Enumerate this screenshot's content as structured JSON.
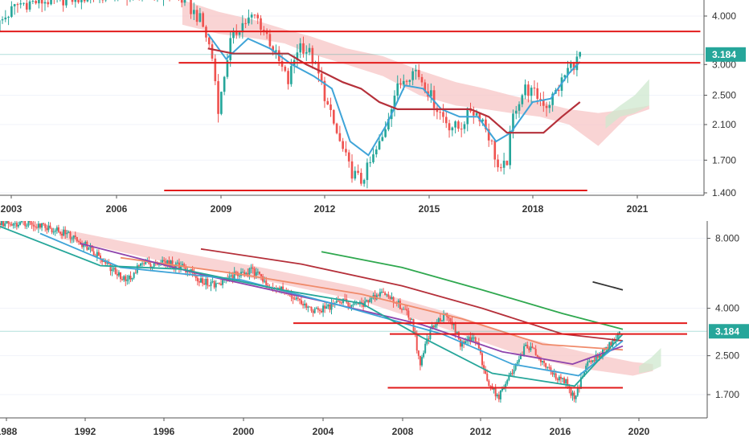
{
  "colors": {
    "up": "#26a69a",
    "down": "#ef5350",
    "support": "#e21b1b",
    "tenkan": "#3fa4d8",
    "kijun": "#b5303a",
    "cloud_bear": "#f7c6c6",
    "cloud_bull": "#cfe8cf",
    "ma_green": "#2fa84f",
    "ma_dark": "#333333",
    "price_badge": "#26a69a",
    "axis": "#555555",
    "grid": "#f0f3fa"
  },
  "chart_data": [
    {
      "type": "candlestick",
      "title": "",
      "timeframe": "monthly",
      "y_scale": "log",
      "x_ticks": [
        "2003",
        "2006",
        "2009",
        "2012",
        "2015",
        "2018",
        "2021"
      ],
      "x_range": [
        2003.0,
        2022.3
      ],
      "y_ticks": [
        "4.000",
        "3.000",
        "2.500",
        "2.100",
        "1.700",
        "1.400"
      ],
      "y_range": [
        1.38,
        4.4
      ],
      "last_price": "3.184",
      "support_lines": [
        {
          "from": 2002.9,
          "to": 2022.2,
          "y": 3.65
        },
        {
          "from": 2007.9,
          "to": 2022.2,
          "y": 3.03
        },
        {
          "from": 2007.5,
          "to": 2019.1,
          "y": 1.42
        }
      ],
      "price_path": [
        [
          2002.9,
          3.75
        ],
        [
          2003.5,
          4.3
        ],
        [
          2004.5,
          4.4
        ],
        [
          2005.5,
          4.5
        ],
        [
          2006.5,
          4.6
        ],
        [
          2007.5,
          4.6
        ],
        [
          2008.0,
          4.4
        ],
        [
          2008.5,
          3.9
        ],
        [
          2008.8,
          3.2
        ],
        [
          2009.0,
          2.25
        ],
        [
          2009.3,
          3.4
        ],
        [
          2009.6,
          3.8
        ],
        [
          2010.0,
          4.0
        ],
        [
          2010.3,
          3.6
        ],
        [
          2010.6,
          3.1
        ],
        [
          2010.9,
          2.7
        ],
        [
          2011.2,
          3.4
        ],
        [
          2011.5,
          3.2
        ],
        [
          2011.8,
          2.7
        ],
        [
          2012.0,
          2.3
        ],
        [
          2012.3,
          1.9
        ],
        [
          2012.6,
          1.6
        ],
        [
          2012.9,
          1.5
        ],
        [
          2013.2,
          1.7
        ],
        [
          2013.5,
          1.95
        ],
        [
          2013.8,
          2.5
        ],
        [
          2014.1,
          2.8
        ],
        [
          2014.4,
          2.9
        ],
        [
          2014.7,
          2.6
        ],
        [
          2015.0,
          2.3
        ],
        [
          2015.3,
          2.1
        ],
        [
          2015.6,
          2.05
        ],
        [
          2015.9,
          2.3
        ],
        [
          2016.2,
          2.2
        ],
        [
          2016.5,
          1.85
        ],
        [
          2016.7,
          1.55
        ],
        [
          2016.9,
          1.7
        ],
        [
          2017.1,
          2.3
        ],
        [
          2017.4,
          2.6
        ],
        [
          2017.7,
          2.5
        ],
        [
          2018.0,
          2.35
        ],
        [
          2018.3,
          2.6
        ],
        [
          2018.6,
          2.95
        ],
        [
          2018.8,
          3.05
        ],
        [
          2018.9,
          3.2
        ]
      ],
      "tenkan_path": [
        [
          2008.7,
          3.6
        ],
        [
          2009.2,
          3.1
        ],
        [
          2009.8,
          3.5
        ],
        [
          2010.4,
          3.3
        ],
        [
          2011.0,
          3.0
        ],
        [
          2011.6,
          2.8
        ],
        [
          2012.1,
          2.6
        ],
        [
          2012.6,
          1.9
        ],
        [
          2013.1,
          1.75
        ],
        [
          2013.6,
          2.1
        ],
        [
          2014.1,
          2.65
        ],
        [
          2014.6,
          2.6
        ],
        [
          2015.1,
          2.3
        ],
        [
          2015.6,
          2.2
        ],
        [
          2016.1,
          2.2
        ],
        [
          2016.6,
          1.9
        ],
        [
          2017.0,
          2.0
        ],
        [
          2017.6,
          2.4
        ],
        [
          2018.1,
          2.45
        ],
        [
          2018.6,
          2.85
        ],
        [
          2018.9,
          3.05
        ]
      ],
      "kijun_path": [
        [
          2008.7,
          3.3
        ],
        [
          2009.4,
          3.2
        ],
        [
          2010.2,
          3.2
        ],
        [
          2010.9,
          3.2
        ],
        [
          2011.4,
          3.0
        ],
        [
          2011.9,
          2.85
        ],
        [
          2012.4,
          2.7
        ],
        [
          2012.9,
          2.6
        ],
        [
          2013.4,
          2.4
        ],
        [
          2013.9,
          2.3
        ],
        [
          2014.4,
          2.3
        ],
        [
          2014.9,
          2.3
        ],
        [
          2015.4,
          2.3
        ],
        [
          2015.9,
          2.3
        ],
        [
          2016.4,
          2.2
        ],
        [
          2016.9,
          2.0
        ],
        [
          2017.4,
          2.0
        ],
        [
          2017.9,
          2.0
        ],
        [
          2018.4,
          2.2
        ],
        [
          2018.9,
          2.4
        ]
      ],
      "cloud_bear_upper": [
        [
          2008.0,
          4.4
        ],
        [
          2009.0,
          4.1
        ],
        [
          2010.0,
          3.9
        ],
        [
          2010.8,
          3.7
        ],
        [
          2011.5,
          3.55
        ],
        [
          2012.5,
          3.3
        ],
        [
          2013.5,
          3.15
        ],
        [
          2014.5,
          2.9
        ],
        [
          2015.5,
          2.7
        ],
        [
          2016.3,
          2.6
        ],
        [
          2017.0,
          2.5
        ],
        [
          2017.8,
          2.4
        ],
        [
          2018.6,
          2.3
        ],
        [
          2019.4,
          2.25
        ],
        [
          2020.2,
          2.3
        ],
        [
          2020.8,
          2.35
        ]
      ],
      "cloud_bear_lower": [
        [
          2008.0,
          3.8
        ],
        [
          2009.0,
          3.6
        ],
        [
          2010.0,
          3.5
        ],
        [
          2010.8,
          3.4
        ],
        [
          2011.5,
          3.2
        ],
        [
          2012.5,
          3.0
        ],
        [
          2013.5,
          2.8
        ],
        [
          2014.5,
          2.5
        ],
        [
          2015.5,
          2.35
        ],
        [
          2016.3,
          2.3
        ],
        [
          2017.0,
          2.25
        ],
        [
          2017.8,
          2.2
        ],
        [
          2018.6,
          2.1
        ],
        [
          2019.4,
          1.85
        ],
        [
          2020.2,
          2.2
        ],
        [
          2020.8,
          2.3
        ]
      ],
      "cloud_bull_upper": [
        [
          2019.6,
          2.2
        ],
        [
          2020.0,
          2.35
        ],
        [
          2020.4,
          2.5
        ],
        [
          2020.8,
          2.75
        ]
      ],
      "cloud_bull_lower": [
        [
          2019.6,
          2.05
        ],
        [
          2020.0,
          2.2
        ],
        [
          2020.4,
          2.25
        ],
        [
          2020.8,
          2.35
        ]
      ]
    },
    {
      "type": "candlestick",
      "title": "",
      "timeframe": "monthly",
      "y_scale": "log",
      "x_ticks": [
        "1988",
        "1992",
        "1996",
        "2000",
        "2004",
        "2008",
        "2012",
        "2016",
        "2020"
      ],
      "x_range": [
        1988.0,
        2023.2
      ],
      "y_ticks": [
        "8.000",
        "4.000",
        "2.500",
        "1.700"
      ],
      "y_range": [
        1.35,
        9.5
      ],
      "last_price": "3.184",
      "support_lines": [
        {
          "from": 2002.6,
          "to": 2022.2,
          "y": 3.45
        },
        {
          "from": 2007.4,
          "to": 2022.2,
          "y": 3.1
        },
        {
          "from": 2007.3,
          "to": 2019.0,
          "y": 1.82
        }
      ],
      "price_path": [
        [
          1988.0,
          9.3
        ],
        [
          1989.5,
          9.4
        ],
        [
          1990.5,
          8.9
        ],
        [
          1991.5,
          8.2
        ],
        [
          1992.5,
          7.2
        ],
        [
          1993.5,
          5.9
        ],
        [
          1994.3,
          5.2
        ],
        [
          1995.0,
          6.2
        ],
        [
          1996.0,
          6.3
        ],
        [
          1997.0,
          6.1
        ],
        [
          1998.0,
          5.3
        ],
        [
          1998.8,
          5.0
        ],
        [
          1999.5,
          5.5
        ],
        [
          2000.5,
          5.8
        ],
        [
          2001.5,
          5.0
        ],
        [
          2002.5,
          4.6
        ],
        [
          2003.4,
          3.9
        ],
        [
          2004.2,
          4.0
        ],
        [
          2005.0,
          4.3
        ],
        [
          2006.0,
          4.1
        ],
        [
          2007.0,
          4.7
        ],
        [
          2007.8,
          4.2
        ],
        [
          2008.5,
          3.6
        ],
        [
          2008.9,
          2.2
        ],
        [
          2009.5,
          3.4
        ],
        [
          2010.3,
          3.8
        ],
        [
          2010.9,
          2.8
        ],
        [
          2011.6,
          3.0
        ],
        [
          2012.2,
          2.0
        ],
        [
          2012.8,
          1.65
        ],
        [
          2013.5,
          2.1
        ],
        [
          2014.2,
          2.8
        ],
        [
          2014.9,
          2.4
        ],
        [
          2015.5,
          2.05
        ],
        [
          2016.2,
          1.9
        ],
        [
          2016.6,
          1.6
        ],
        [
          2017.2,
          2.3
        ],
        [
          2017.8,
          2.5
        ],
        [
          2018.4,
          2.8
        ],
        [
          2018.9,
          3.2
        ]
      ],
      "ma_paths": [
        {
          "color": "#2fa84f",
          "points": [
            [
              2004.0,
              7.0
            ],
            [
              2008.0,
              6.0
            ],
            [
              2012.0,
              4.8
            ],
            [
              2016.0,
              3.8
            ],
            [
              2019.0,
              3.25
            ]
          ]
        },
        {
          "color": "#333333",
          "points": [
            [
              2017.5,
              5.2
            ],
            [
              2019.0,
              4.8
            ]
          ]
        },
        {
          "color": "#b5303a",
          "points": [
            [
              1998.0,
              7.2
            ],
            [
              2003.0,
              6.2
            ],
            [
              2008.0,
              5.0
            ],
            [
              2012.0,
              4.0
            ],
            [
              2016.0,
              3.1
            ],
            [
              2019.0,
              2.9
            ]
          ]
        },
        {
          "color": "#f08a6a",
          "points": [
            [
              1994.0,
              6.6
            ],
            [
              2000.0,
              5.6
            ],
            [
              2006.0,
              4.6
            ],
            [
              2011.0,
              3.6
            ],
            [
              2015.0,
              2.8
            ],
            [
              2019.0,
              2.65
            ]
          ]
        },
        {
          "color": "#8e44ad",
          "points": [
            [
              1992.0,
              7.6
            ],
            [
              1998.0,
              5.6
            ],
            [
              2004.0,
              4.3
            ],
            [
              2009.0,
              3.4
            ],
            [
              2013.0,
              2.6
            ],
            [
              2016.5,
              2.3
            ],
            [
              2019.0,
              2.75
            ]
          ]
        },
        {
          "color": "#3fa4d8",
          "points": [
            [
              1990.0,
              8.4
            ],
            [
              1994.0,
              6.0
            ],
            [
              2000.0,
              5.3
            ],
            [
              2005.0,
              4.1
            ],
            [
              2010.0,
              3.1
            ],
            [
              2013.5,
              2.3
            ],
            [
              2016.8,
              2.05
            ],
            [
              2019.0,
              2.9
            ]
          ]
        },
        {
          "color": "#26a69a",
          "points": [
            [
              1988.0,
              9.0
            ],
            [
              1993.0,
              6.1
            ],
            [
              1997.0,
              5.9
            ],
            [
              2002.0,
              4.8
            ],
            [
              2006.0,
              4.2
            ],
            [
              2009.0,
              3.0
            ],
            [
              2012.5,
              2.1
            ],
            [
              2016.6,
              1.85
            ],
            [
              2019.0,
              3.1
            ]
          ]
        }
      ],
      "cloud_bear_upper": [
        [
          1991.0,
          8.8
        ],
        [
          1996.0,
          7.2
        ],
        [
          2001.0,
          6.0
        ],
        [
          2006.0,
          4.9
        ],
        [
          2010.0,
          3.9
        ],
        [
          2014.0,
          3.0
        ],
        [
          2017.0,
          2.6
        ],
        [
          2019.5,
          2.35
        ],
        [
          2020.5,
          2.3
        ]
      ],
      "cloud_bear_lower": [
        [
          1991.0,
          8.0
        ],
        [
          1996.0,
          6.4
        ],
        [
          2001.0,
          5.3
        ],
        [
          2006.0,
          4.3
        ],
        [
          2010.0,
          3.3
        ],
        [
          2014.0,
          2.5
        ],
        [
          2017.0,
          2.2
        ],
        [
          2019.5,
          2.05
        ],
        [
          2020.5,
          2.15
        ]
      ],
      "cloud_bull_upper": [
        [
          2019.8,
          2.25
        ],
        [
          2020.4,
          2.45
        ],
        [
          2020.9,
          2.7
        ]
      ],
      "cloud_bull_lower": [
        [
          2019.8,
          2.1
        ],
        [
          2020.4,
          2.15
        ],
        [
          2020.9,
          2.25
        ]
      ]
    }
  ]
}
